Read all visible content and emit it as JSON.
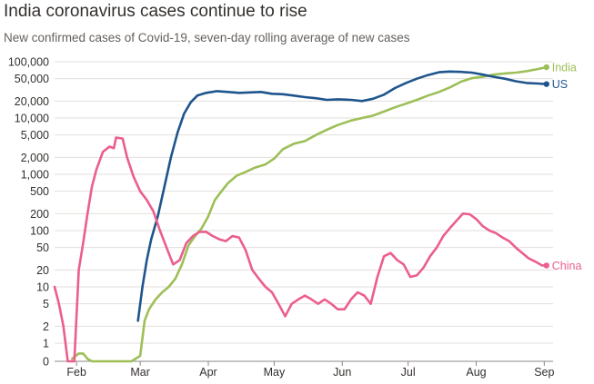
{
  "chart_data": {
    "type": "line",
    "title": "India coronavirus cases continue to rise",
    "subtitle": "New confirmed cases of Covid-19, seven-day rolling average of new cases",
    "xlabel": "",
    "ylabel": "",
    "yscale": "log",
    "grid": true,
    "x_ticks": [
      "Feb",
      "Mar",
      "Apr",
      "May",
      "Jun",
      "Jul",
      "Aug",
      "Sep"
    ],
    "y_ticks": [
      {
        "value": 100000,
        "label": "100,000"
      },
      {
        "value": 50000,
        "label": "50,000"
      },
      {
        "value": 20000,
        "label": "20,000"
      },
      {
        "value": 10000,
        "label": "10,000"
      },
      {
        "value": 5000,
        "label": "5,000"
      },
      {
        "value": 2000,
        "label": "2,000"
      },
      {
        "value": 1000,
        "label": "1,000"
      },
      {
        "value": 500,
        "label": "500"
      },
      {
        "value": 200,
        "label": "200"
      },
      {
        "value": 100,
        "label": "100"
      },
      {
        "value": 50,
        "label": "50"
      },
      {
        "value": 20,
        "label": "20"
      },
      {
        "value": 10,
        "label": "10"
      },
      {
        "value": 5,
        "label": "5"
      },
      {
        "value": 2,
        "label": "2"
      },
      {
        "value": 1,
        "label": "1"
      },
      {
        "value": 0,
        "label": "0"
      }
    ],
    "xlim": [
      "2020-01-22",
      "2020-09-05"
    ],
    "series": [
      {
        "name": "India",
        "color": "#9dbf57",
        "points": [
          [
            "2020-01-30",
            0.14
          ],
          [
            "2020-02-02",
            0.43
          ],
          [
            "2020-02-04",
            0.43
          ],
          [
            "2020-02-06",
            0.14
          ],
          [
            "2020-02-08",
            0
          ],
          [
            "2020-02-26",
            0
          ],
          [
            "2020-03-01",
            0.3
          ],
          [
            "2020-03-03",
            2.5
          ],
          [
            "2020-03-05",
            4
          ],
          [
            "2020-03-08",
            6
          ],
          [
            "2020-03-11",
            8
          ],
          [
            "2020-03-14",
            10
          ],
          [
            "2020-03-17",
            14
          ],
          [
            "2020-03-20",
            25
          ],
          [
            "2020-03-23",
            55
          ],
          [
            "2020-03-26",
            80
          ],
          [
            "2020-03-29",
            110
          ],
          [
            "2020-04-01",
            180
          ],
          [
            "2020-04-04",
            350
          ],
          [
            "2020-04-07",
            500
          ],
          [
            "2020-04-10",
            700
          ],
          [
            "2020-04-14",
            950
          ],
          [
            "2020-04-18",
            1100
          ],
          [
            "2020-04-22",
            1300
          ],
          [
            "2020-04-27",
            1500
          ],
          [
            "2020-05-01",
            1900
          ],
          [
            "2020-05-05",
            2800
          ],
          [
            "2020-05-10",
            3500
          ],
          [
            "2020-05-15",
            3900
          ],
          [
            "2020-05-20",
            5000
          ],
          [
            "2020-05-25",
            6200
          ],
          [
            "2020-05-30",
            7500
          ],
          [
            "2020-06-05",
            9000
          ],
          [
            "2020-06-10",
            10000
          ],
          [
            "2020-06-15",
            11000
          ],
          [
            "2020-06-20",
            13000
          ],
          [
            "2020-06-25",
            15500
          ],
          [
            "2020-06-30",
            18000
          ],
          [
            "2020-07-05",
            21000
          ],
          [
            "2020-07-10",
            25000
          ],
          [
            "2020-07-15",
            29000
          ],
          [
            "2020-07-20",
            35000
          ],
          [
            "2020-07-25",
            44000
          ],
          [
            "2020-07-30",
            51000
          ],
          [
            "2020-08-04",
            54000
          ],
          [
            "2020-08-09",
            59000
          ],
          [
            "2020-08-14",
            62000
          ],
          [
            "2020-08-19",
            64000
          ],
          [
            "2020-08-24",
            68000
          ],
          [
            "2020-08-29",
            74000
          ],
          [
            "2020-09-02",
            80000
          ]
        ]
      },
      {
        "name": "US",
        "color": "#1e558c",
        "points": [
          [
            "2020-02-29",
            2.5
          ],
          [
            "2020-03-02",
            10
          ],
          [
            "2020-03-04",
            30
          ],
          [
            "2020-03-06",
            70
          ],
          [
            "2020-03-09",
            180
          ],
          [
            "2020-03-12",
            600
          ],
          [
            "2020-03-15",
            2000
          ],
          [
            "2020-03-18",
            5500
          ],
          [
            "2020-03-21",
            12000
          ],
          [
            "2020-03-24",
            19000
          ],
          [
            "2020-03-27",
            25000
          ],
          [
            "2020-03-31",
            28000
          ],
          [
            "2020-04-05",
            30000
          ],
          [
            "2020-04-10",
            29000
          ],
          [
            "2020-04-15",
            28000
          ],
          [
            "2020-04-20",
            28500
          ],
          [
            "2020-04-25",
            29000
          ],
          [
            "2020-04-30",
            27000
          ],
          [
            "2020-05-05",
            26500
          ],
          [
            "2020-05-10",
            25000
          ],
          [
            "2020-05-15",
            23500
          ],
          [
            "2020-05-20",
            22500
          ],
          [
            "2020-05-25",
            21000
          ],
          [
            "2020-05-30",
            21500
          ],
          [
            "2020-06-05",
            21000
          ],
          [
            "2020-06-10",
            20000
          ],
          [
            "2020-06-15",
            22000
          ],
          [
            "2020-06-20",
            26000
          ],
          [
            "2020-06-25",
            34000
          ],
          [
            "2020-06-30",
            42000
          ],
          [
            "2020-07-05",
            50000
          ],
          [
            "2020-07-10",
            58000
          ],
          [
            "2020-07-15",
            65000
          ],
          [
            "2020-07-20",
            67000
          ],
          [
            "2020-07-25",
            66000
          ],
          [
            "2020-07-30",
            64000
          ],
          [
            "2020-08-04",
            59000
          ],
          [
            "2020-08-09",
            54000
          ],
          [
            "2020-08-14",
            50000
          ],
          [
            "2020-08-19",
            45000
          ],
          [
            "2020-08-24",
            42000
          ],
          [
            "2020-08-29",
            41000
          ],
          [
            "2020-09-02",
            40000
          ]
        ]
      },
      {
        "name": "China",
        "color": "#eb5e8d",
        "points": [
          [
            "2020-01-22",
            10
          ],
          [
            "2020-01-24",
            5
          ],
          [
            "2020-01-26",
            2
          ],
          [
            "2020-01-28",
            0
          ],
          [
            "2020-01-31",
            0
          ],
          [
            "2020-02-02",
            20
          ],
          [
            "2020-02-04",
            60
          ],
          [
            "2020-02-06",
            200
          ],
          [
            "2020-02-08",
            600
          ],
          [
            "2020-02-10",
            1200
          ],
          [
            "2020-02-13",
            2500
          ],
          [
            "2020-02-16",
            3100
          ],
          [
            "2020-02-18",
            2900
          ],
          [
            "2020-02-19",
            4500
          ],
          [
            "2020-02-22",
            4300
          ],
          [
            "2020-02-24",
            2000
          ],
          [
            "2020-02-27",
            900
          ],
          [
            "2020-03-01",
            500
          ],
          [
            "2020-03-04",
            350
          ],
          [
            "2020-03-07",
            220
          ],
          [
            "2020-03-10",
            100
          ],
          [
            "2020-03-13",
            50
          ],
          [
            "2020-03-16",
            25
          ],
          [
            "2020-03-19",
            30
          ],
          [
            "2020-03-22",
            60
          ],
          [
            "2020-03-25",
            80
          ],
          [
            "2020-03-28",
            95
          ],
          [
            "2020-03-31",
            95
          ],
          [
            "2020-04-03",
            80
          ],
          [
            "2020-04-06",
            70
          ],
          [
            "2020-04-09",
            65
          ],
          [
            "2020-04-12",
            80
          ],
          [
            "2020-04-15",
            75
          ],
          [
            "2020-04-18",
            45
          ],
          [
            "2020-04-21",
            20
          ],
          [
            "2020-04-24",
            14
          ],
          [
            "2020-04-27",
            10
          ],
          [
            "2020-04-30",
            8
          ],
          [
            "2020-05-03",
            5
          ],
          [
            "2020-05-06",
            3
          ],
          [
            "2020-05-09",
            5
          ],
          [
            "2020-05-12",
            6
          ],
          [
            "2020-05-15",
            7
          ],
          [
            "2020-05-18",
            6
          ],
          [
            "2020-05-21",
            5
          ],
          [
            "2020-05-24",
            6
          ],
          [
            "2020-05-27",
            5
          ],
          [
            "2020-05-30",
            4
          ],
          [
            "2020-06-02",
            4
          ],
          [
            "2020-06-05",
            6
          ],
          [
            "2020-06-08",
            8
          ],
          [
            "2020-06-11",
            7
          ],
          [
            "2020-06-14",
            5
          ],
          [
            "2020-06-17",
            15
          ],
          [
            "2020-06-20",
            35
          ],
          [
            "2020-06-23",
            40
          ],
          [
            "2020-06-26",
            30
          ],
          [
            "2020-06-29",
            25
          ],
          [
            "2020-07-02",
            15
          ],
          [
            "2020-07-05",
            16
          ],
          [
            "2020-07-08",
            22
          ],
          [
            "2020-07-11",
            35
          ],
          [
            "2020-07-14",
            50
          ],
          [
            "2020-07-17",
            80
          ],
          [
            "2020-07-20",
            110
          ],
          [
            "2020-07-23",
            150
          ],
          [
            "2020-07-26",
            200
          ],
          [
            "2020-07-29",
            195
          ],
          [
            "2020-08-01",
            160
          ],
          [
            "2020-08-04",
            120
          ],
          [
            "2020-08-07",
            100
          ],
          [
            "2020-08-10",
            90
          ],
          [
            "2020-08-13",
            75
          ],
          [
            "2020-08-16",
            65
          ],
          [
            "2020-08-19",
            50
          ],
          [
            "2020-08-22",
            40
          ],
          [
            "2020-08-25",
            32
          ],
          [
            "2020-08-28",
            28
          ],
          [
            "2020-08-31",
            24
          ],
          [
            "2020-09-02",
            24
          ]
        ]
      }
    ]
  }
}
